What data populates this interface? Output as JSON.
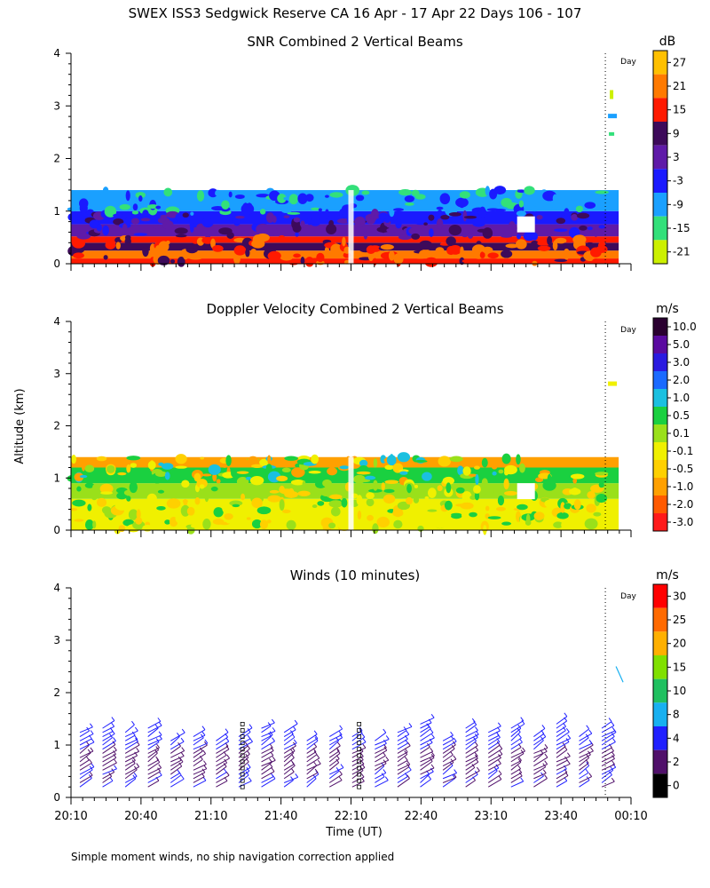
{
  "figure": {
    "title": "SWEX ISS3 Sedgwick Reserve CA  16 Apr - 17 Apr 22 Days 106 - 107",
    "ylabel": "Altitude (km)",
    "xlabel": "Time (UT)",
    "footnote": "Simple moment winds, no ship navigation correction applied",
    "day_marker_label": "Day",
    "day_boundary_time": "23:59"
  },
  "chart_data": [
    {
      "type": "heatmap",
      "title": "SNR Combined 2 Vertical Beams",
      "xlabel": "Time (UT)",
      "ylabel": "Altitude (km)",
      "xlim": [
        "20:10",
        "00:10"
      ],
      "ylim": [
        0,
        4
      ],
      "x_ticks": [
        "20:10",
        "20:40",
        "21:10",
        "21:40",
        "22:10",
        "22:40",
        "23:10",
        "23:40",
        "00:10"
      ],
      "y_ticks": [
        0,
        1,
        2,
        3,
        4
      ],
      "data_top_km": 1.4,
      "colorbar": {
        "unit": "dB",
        "labels": [
          "27",
          "21",
          "15",
          "9",
          "3",
          "-3",
          "-9",
          "-15",
          "-21"
        ],
        "colors": [
          "#ffc000",
          "#ff7a00",
          "#ff1a00",
          "#3d0a5a",
          "#5f1aa8",
          "#1a1aff",
          "#1aa0ff",
          "#33e07a",
          "#ccf000"
        ]
      },
      "bands": [
        {
          "km": [
            0.0,
            0.1
          ],
          "level": "15"
        },
        {
          "km": [
            0.1,
            0.25
          ],
          "level": "21"
        },
        {
          "km": [
            0.25,
            0.4
          ],
          "level": "9"
        },
        {
          "km": [
            0.4,
            0.52
          ],
          "level": "15"
        },
        {
          "km": [
            0.52,
            0.75
          ],
          "level": "3"
        },
        {
          "km": [
            0.75,
            1.0
          ],
          "level": "-3"
        },
        {
          "km": [
            1.0,
            1.4
          ],
          "level": "-9"
        }
      ]
    },
    {
      "type": "heatmap",
      "title": "Doppler Velocity Combined 2 Vertical Beams",
      "xlabel": "Time (UT)",
      "ylabel": "Altitude (km)",
      "xlim": [
        "20:10",
        "00:10"
      ],
      "ylim": [
        0,
        4
      ],
      "x_ticks": [
        "20:10",
        "20:40",
        "21:10",
        "21:40",
        "22:10",
        "22:40",
        "23:10",
        "23:40",
        "00:10"
      ],
      "y_ticks": [
        0,
        1,
        2,
        3,
        4
      ],
      "data_top_km": 1.4,
      "colorbar": {
        "unit": "m/s",
        "labels": [
          "10.0",
          "5.0",
          "3.0",
          "2.0",
          "1.0",
          "0.5",
          "0.1",
          "-0.1",
          "-0.5",
          "-1.0",
          "-2.0",
          "-3.0"
        ],
        "colors": [
          "#2a0030",
          "#5a0aa0",
          "#2a1ae0",
          "#1a6aff",
          "#1ac0e0",
          "#1ad040",
          "#9ae01a",
          "#f0f000",
          "#ffd000",
          "#ffa000",
          "#ff5a00",
          "#ff1a1a"
        ]
      },
      "bands": [
        {
          "km": [
            0.0,
            0.6
          ],
          "level": "-0.1"
        },
        {
          "km": [
            0.6,
            0.9
          ],
          "level": "0.1"
        },
        {
          "km": [
            0.9,
            1.2
          ],
          "level": "0.5"
        },
        {
          "km": [
            1.2,
            1.4
          ],
          "level": "-1.0"
        }
      ]
    },
    {
      "type": "wind_barbs",
      "title": "Winds (10 minutes)",
      "xlabel": "Time (UT)",
      "ylabel": "Altitude (km)",
      "xlim": [
        "20:10",
        "00:10"
      ],
      "ylim": [
        0,
        4
      ],
      "x_ticks": [
        "20:10",
        "20:40",
        "21:10",
        "21:40",
        "22:10",
        "22:40",
        "23:10",
        "23:40",
        "00:10"
      ],
      "y_ticks": [
        0,
        1,
        2,
        3,
        4
      ],
      "profile_top_km": 1.45,
      "colorbar": {
        "unit": "m/s",
        "labels": [
          "30",
          "25",
          "20",
          "15",
          "10",
          "8",
          "4",
          "2",
          "0"
        ],
        "colors": [
          "#ff0000",
          "#ff6a00",
          "#ffb000",
          "#80e000",
          "#20c060",
          "#18b0f0",
          "#2020ff",
          "#50106a",
          "#000000"
        ]
      }
    }
  ]
}
